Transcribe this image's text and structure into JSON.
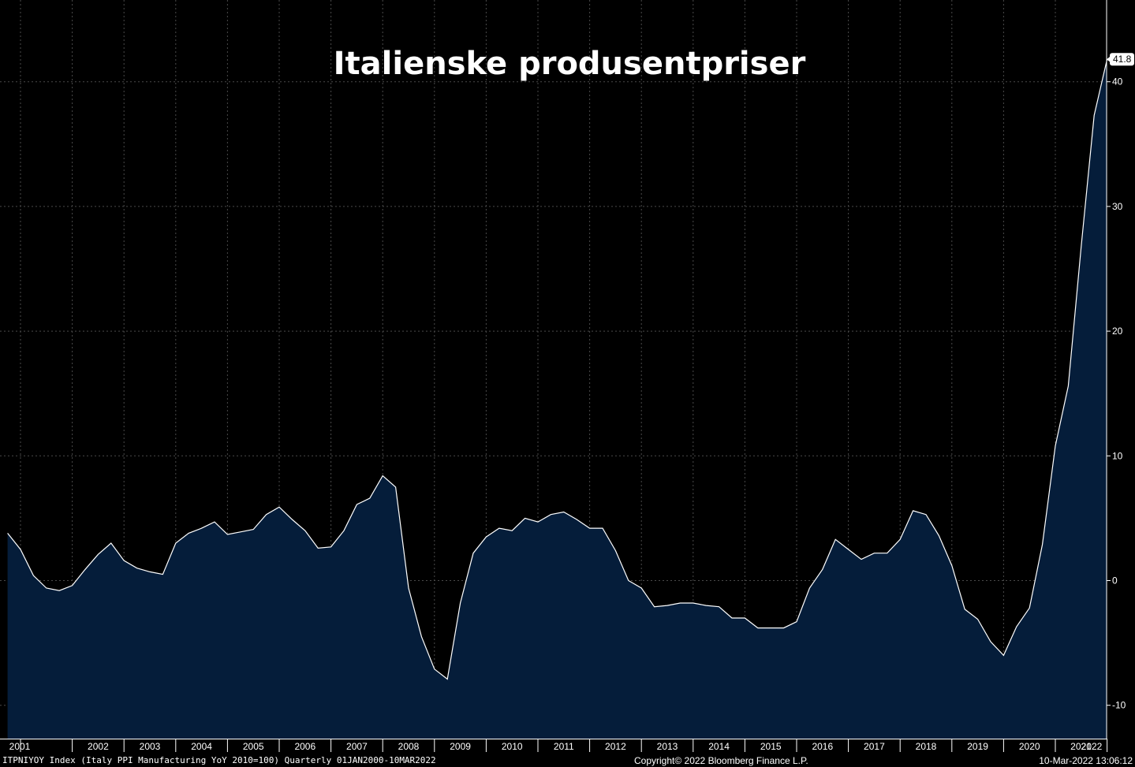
{
  "chart_data": {
    "type": "area",
    "title": "Italienske produsentpriser",
    "xlabel": "",
    "ylabel": "",
    "ylim": [
      -12.5,
      46
    ],
    "yticks": [
      -10,
      0,
      10,
      20,
      30,
      40
    ],
    "xticks": [
      "2001",
      "2002",
      "2003",
      "2004",
      "2005",
      "2006",
      "2007",
      "2008",
      "2009",
      "2010",
      "2011",
      "2012",
      "2013",
      "2014",
      "2015",
      "2016",
      "2017",
      "2018",
      "2019",
      "2020",
      "2021",
      "2022"
    ],
    "grid": true,
    "last_value_label": "41.8",
    "colors": {
      "background": "#000000",
      "fill": "#051d3a",
      "line": "#ffffff",
      "grid": "#4a4a4a"
    },
    "series": [
      {
        "x": [
          "2000-10",
          "2001-01",
          "2001-04",
          "2001-07",
          "2001-10",
          "2002-01",
          "2002-04",
          "2002-07",
          "2002-10",
          "2003-01",
          "2003-04",
          "2003-07",
          "2003-10",
          "2004-01",
          "2004-04",
          "2004-07",
          "2004-10",
          "2005-01",
          "2005-04",
          "2005-07",
          "2005-10",
          "2006-01",
          "2006-04",
          "2006-07",
          "2006-10",
          "2007-01",
          "2007-04",
          "2007-07",
          "2007-10",
          "2008-01",
          "2008-04",
          "2008-07",
          "2008-10",
          "2009-01",
          "2009-04",
          "2009-07",
          "2009-10",
          "2010-01",
          "2010-04",
          "2010-07",
          "2010-10",
          "2011-01",
          "2011-04",
          "2011-07",
          "2011-10",
          "2012-01",
          "2012-04",
          "2012-07",
          "2012-10",
          "2013-01",
          "2013-04",
          "2013-07",
          "2013-10",
          "2014-01",
          "2014-04",
          "2014-07",
          "2014-10",
          "2015-01",
          "2015-04",
          "2015-07",
          "2015-10",
          "2016-01",
          "2016-04",
          "2016-07",
          "2016-10",
          "2017-01",
          "2017-04",
          "2017-07",
          "2017-10",
          "2018-01",
          "2018-04",
          "2018-07",
          "2018-10",
          "2019-01",
          "2019-04",
          "2019-07",
          "2019-10",
          "2020-01",
          "2020-04",
          "2020-07",
          "2020-10",
          "2021-01",
          "2021-04",
          "2021-07",
          "2021-10",
          "2022-01"
        ],
        "y": [
          3.8,
          2.5,
          0.4,
          -0.6,
          -0.8,
          -0.4,
          0.9,
          2.1,
          3.0,
          1.6,
          1.0,
          0.7,
          0.5,
          3.0,
          3.8,
          4.2,
          4.7,
          3.7,
          3.9,
          4.1,
          5.3,
          5.9,
          4.9,
          4.0,
          2.6,
          2.7,
          4.0,
          6.1,
          6.6,
          8.4,
          7.5,
          -0.6,
          -4.5,
          -7.1,
          -7.9,
          -1.8,
          2.2,
          3.5,
          4.2,
          4.0,
          5.0,
          4.7,
          5.3,
          5.5,
          4.9,
          4.2,
          4.2,
          2.4,
          0.0,
          -0.6,
          -2.1,
          -2.0,
          -1.8,
          -1.8,
          -2.0,
          -2.1,
          -3.0,
          -3.0,
          -3.8,
          -3.8,
          -3.8,
          -3.3,
          -0.6,
          0.9,
          3.3,
          2.5,
          1.7,
          2.2,
          2.2,
          3.3,
          5.6,
          5.3,
          3.6,
          1.2,
          -2.3,
          -3.1,
          -4.9,
          -6.0,
          -3.7,
          -2.2,
          2.9,
          10.8,
          15.6,
          26.8,
          37.3,
          41.8
        ]
      }
    ]
  },
  "footer": {
    "left": "ITPNIYOY Index (Italy PPI Manufacturing YoY 2010=100)  Quarterly 01JAN2000-10MAR2022",
    "center": "Copyright© 2022 Bloomberg Finance L.P.",
    "right": "10-Mar-2022 13:06:12"
  }
}
